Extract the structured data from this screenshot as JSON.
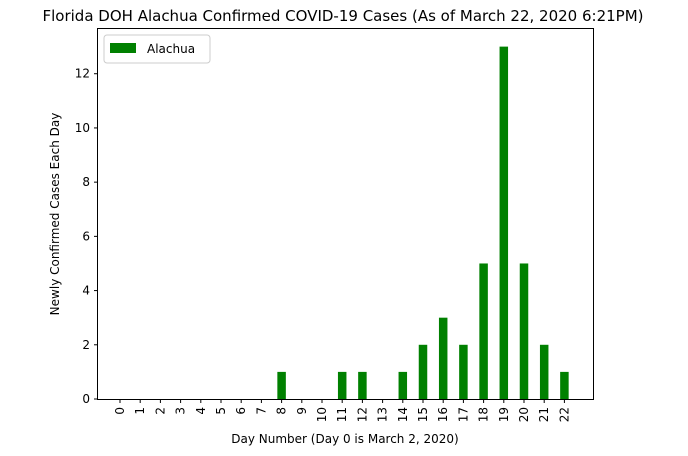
{
  "chart_data": {
    "type": "bar",
    "title": "Florida DOH Alachua Confirmed COVID-19 Cases (As of March 22, 2020 6:21PM)",
    "xlabel": "Day Number (Day 0 is March 2, 2020)",
    "ylabel": "Newly Confirmed Cases Each Day",
    "categories": [
      "0",
      "1",
      "2",
      "3",
      "4",
      "5",
      "6",
      "7",
      "8",
      "9",
      "10",
      "11",
      "12",
      "13",
      "14",
      "15",
      "16",
      "17",
      "18",
      "19",
      "20",
      "21",
      "22"
    ],
    "series": [
      {
        "name": "Alachua",
        "color": "#008000",
        "values": [
          0,
          0,
          0,
          0,
          0,
          0,
          0,
          0,
          1,
          0,
          0,
          1,
          1,
          0,
          1,
          2,
          3,
          2,
          5,
          13,
          5,
          2,
          1
        ]
      }
    ],
    "ylim": [
      0,
      13.65
    ],
    "yticks": [
      0,
      2,
      4,
      6,
      8,
      10,
      12
    ],
    "grid": false,
    "legend_position": "top-left"
  }
}
